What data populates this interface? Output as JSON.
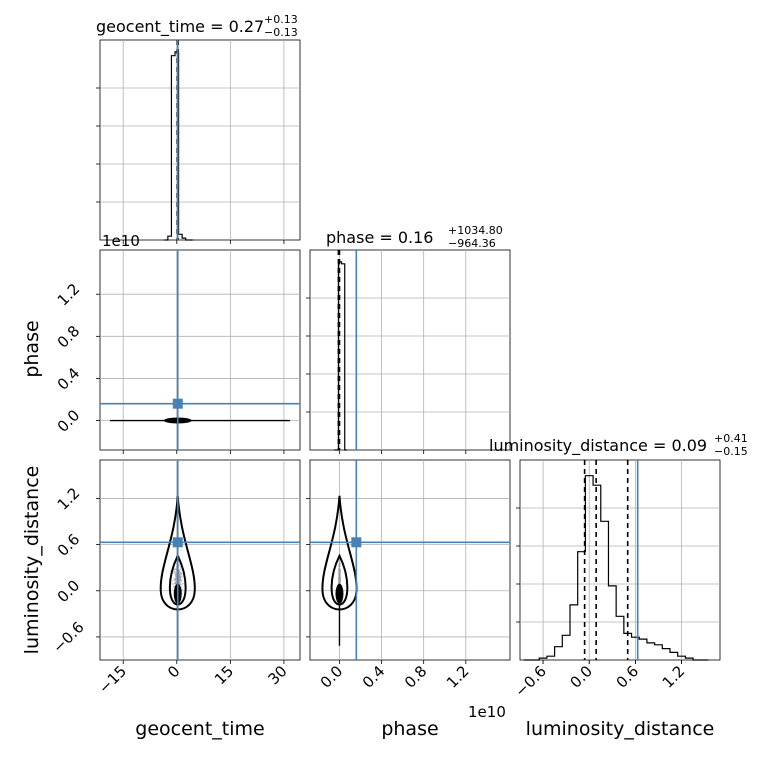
{
  "chart_data": {
    "type": "corner",
    "parameters": [
      "geocent_time",
      "phase",
      "luminosity_distance"
    ],
    "axis_labels": [
      "geocent_time",
      "phase",
      "luminosity_distance"
    ],
    "offset_labels": {
      "phase_y": "1e10",
      "phase_x": "1e10"
    },
    "truth_values": {
      "geocent_time": 0.27,
      "phase": 0.16,
      "luminosity_distance": 0.63
    },
    "truth_color": "#4682b4",
    "quantile_color": "#000000",
    "titles": [
      {
        "param": "geocent_time",
        "text": "geocent_time = 0.27",
        "plus": "+0.13",
        "minus": "−0.13"
      },
      {
        "param": "phase",
        "text": "phase = 0.16",
        "plus": "+1034.80",
        "minus": "−964.36"
      },
      {
        "param": "luminosity_distance",
        "text": "luminosity_distance = 0.09",
        "plus": "+0.41",
        "minus": "−0.15"
      }
    ],
    "ranges": {
      "geocent_time": [
        -21.5,
        34.5
      ],
      "phase": [
        -0.28,
        1.62
      ],
      "luminosity_distance": [
        -0.9,
        1.7
      ]
    },
    "ticks": {
      "geocent_time": {
        "values": [
          -15,
          0,
          15,
          30
        ],
        "labels": [
          "−15",
          "0",
          "15",
          "30"
        ]
      },
      "phase": {
        "values": [
          0.0,
          0.4,
          0.8,
          1.2
        ],
        "labels": [
          "0.0",
          "0.4",
          "0.8",
          "1.2"
        ]
      },
      "luminosity_distance": {
        "values": [
          -0.6,
          0.0,
          0.6,
          1.2
        ],
        "labels": [
          "−0.6",
          "0.0",
          "0.6",
          "1.2"
        ]
      }
    },
    "histograms": {
      "geocent_time": {
        "bin_edges": [
          -3.5,
          -2.5,
          -1.5,
          -0.5,
          0.5,
          1.5,
          2.5,
          3.5,
          4.5
        ],
        "counts": [
          0,
          0.02,
          0.97,
          0.99,
          0.03,
          0.01,
          0,
          0
        ],
        "quantiles": [
          0.14,
          0.27,
          0.4
        ]
      },
      "phase": {
        "bin_edges": [
          -0.05,
          -0.01,
          0.0,
          0.02,
          0.05,
          0.07
        ],
        "counts": [
          0,
          0.98,
          0.99,
          0.98,
          0
        ],
        "quantiles": [
          -0.01,
          0.0
        ]
      },
      "luminosity_distance": {
        "bin_edges": [
          -0.85,
          -0.75,
          -0.65,
          -0.55,
          -0.45,
          -0.35,
          -0.25,
          -0.15,
          -0.05,
          0.05,
          0.15,
          0.25,
          0.35,
          0.45,
          0.55,
          0.65,
          0.75,
          0.85,
          0.95,
          1.05,
          1.15,
          1.25,
          1.35,
          1.45,
          1.55
        ],
        "counts": [
          0,
          0,
          0.01,
          0.02,
          0.07,
          0.13,
          0.29,
          0.57,
          0.97,
          0.92,
          0.73,
          0.39,
          0.23,
          0.14,
          0.12,
          0.11,
          0.09,
          0.08,
          0.06,
          0.04,
          0.02,
          0.01,
          0,
          0
        ],
        "quantiles": [
          -0.06,
          0.09,
          0.5
        ]
      }
    }
  }
}
